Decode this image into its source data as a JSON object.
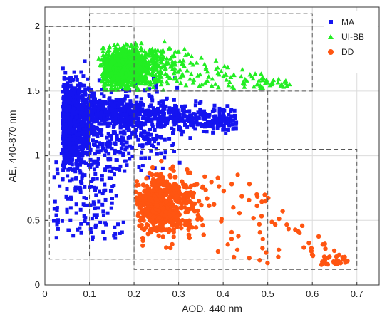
{
  "chart_data": {
    "type": "scatter",
    "title": "",
    "xlabel": "AOD, 440 nm",
    "ylabel": "AE, 440-870 nm",
    "xlim": [
      0,
      0.75
    ],
    "ylim": [
      0,
      2.15
    ],
    "xticks": [
      "0",
      "0.1",
      "0.2",
      "0.3",
      "0.4",
      "0.5",
      "0.6",
      "0.7"
    ],
    "yticks": [
      "0",
      "0.5",
      "1",
      "1.5",
      "2"
    ],
    "grid": true,
    "legend": "top-right",
    "series": [
      {
        "name": "MA",
        "marker": "square",
        "color": "#1414f0",
        "region": {
          "x": [
            0.01,
            0.5
          ],
          "y": [
            0.2,
            1.9
          ]
        }
      },
      {
        "name": "UI-BB",
        "marker": "triangle",
        "color": "#22ee22",
        "region": {
          "x": [
            0.1,
            0.6
          ],
          "y": [
            1.5,
            2.1
          ]
        }
      },
      {
        "name": "DD",
        "marker": "circle",
        "color": "#ff5511",
        "region": {
          "x": [
            0.2,
            0.7
          ],
          "y": [
            0.12,
            1.05
          ]
        }
      }
    ],
    "cluster_boxes": [
      {
        "x": [
          0.01,
          0.2
        ],
        "y": [
          0.2,
          2.0
        ]
      },
      {
        "x": [
          0.1,
          0.6
        ],
        "y": [
          1.5,
          2.1
        ]
      },
      {
        "x": [
          0.1,
          0.5
        ],
        "y": [
          0.2,
          1.5
        ]
      },
      {
        "x": [
          0.2,
          0.7
        ],
        "y": [
          0.12,
          1.05
        ]
      }
    ]
  }
}
